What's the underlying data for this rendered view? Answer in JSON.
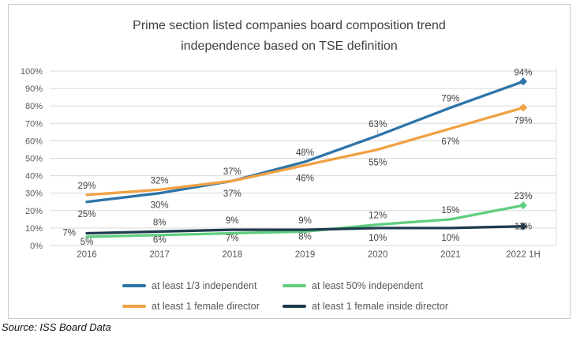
{
  "title": {
    "lines": [
      "Prime section listed companies board composition trend",
      "independence based on TSE definition"
    ]
  },
  "source": "Source: ISS Board Data",
  "colors": {
    "grid": "#D9D9D9",
    "axis_text": "#595959",
    "data_label_text": "#404040",
    "title_text": "#404040",
    "frame_border": "#CBCBCB",
    "leader_line": "#A6A6A6"
  },
  "chart_data": {
    "type": "line",
    "title": "Prime section listed companies board composition trend independence based on TSE definition",
    "categories": [
      "2016",
      "2017",
      "2018",
      "2019",
      "2020",
      "2021",
      "2022 1H"
    ],
    "yticks": [
      "0%",
      "10%",
      "20%",
      "30%",
      "40%",
      "50%",
      "60%",
      "70%",
      "80%",
      "90%",
      "100%"
    ],
    "ylim": [
      0,
      100
    ],
    "ytick_step": 10,
    "grid": true,
    "legend_position": "bottom",
    "series": [
      {
        "name": "at least 1/3 independent",
        "color": "#2E74A8",
        "values": [
          25,
          30,
          37,
          48,
          63,
          79,
          94
        ],
        "label_placement": [
          "below",
          "below",
          "above",
          "above",
          "above-leader",
          "above",
          "above"
        ],
        "label_below_dy": 19
      },
      {
        "name": "at least 1 female director",
        "color": "#F0A143",
        "values": [
          29,
          32,
          37,
          46,
          55,
          67,
          79
        ],
        "label_placement": [
          "above",
          "above",
          "below",
          "below",
          "below",
          "below",
          "below"
        ],
        "label_below_dy": 20
      },
      {
        "name": "at least 50% independent",
        "color": "#5FCE7F",
        "values": [
          5,
          6,
          7,
          8,
          12,
          15,
          23
        ],
        "label_placement": [
          "below",
          "below",
          "below",
          "below",
          "above",
          "above",
          "above"
        ],
        "label_below_dy": 10
      },
      {
        "name": "at least 1 female inside director",
        "color": "#1F3B4D",
        "values": [
          7,
          8,
          9,
          9,
          10,
          10,
          11
        ],
        "label_placement": [
          "left",
          "above",
          "above",
          "above",
          "below",
          "below",
          "on"
        ],
        "label_below_dy": 16
      }
    ],
    "legend_order": [
      0,
      2,
      1,
      3
    ]
  }
}
